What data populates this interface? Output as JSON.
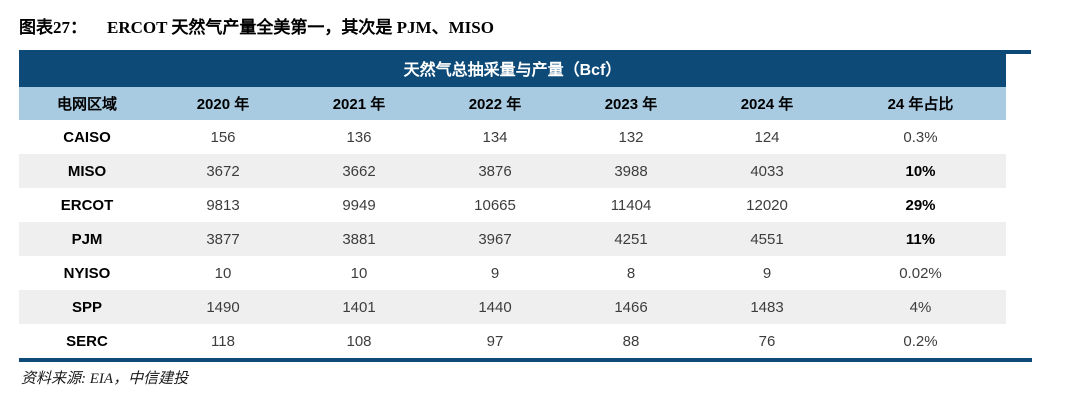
{
  "figure": {
    "number_label": "图表27：",
    "title": "ERCOT 天然气产量全美第一，其次是 PJM、MISO"
  },
  "chart_data": {
    "type": "table",
    "title": "天然气总抽采量与产量（Bcf）",
    "columns": [
      "电网区域",
      "2020 年",
      "2021 年",
      "2022 年",
      "2023 年",
      "2024 年",
      "24 年占比"
    ],
    "rows": [
      {
        "region": "CAISO",
        "values": [
          "156",
          "136",
          "134",
          "132",
          "124"
        ],
        "share": "0.3%",
        "share_bold": false
      },
      {
        "region": "MISO",
        "values": [
          "3672",
          "3662",
          "3876",
          "3988",
          "4033"
        ],
        "share": "10%",
        "share_bold": true
      },
      {
        "region": "ERCOT",
        "values": [
          "9813",
          "9949",
          "10665",
          "11404",
          "12020"
        ],
        "share": "29%",
        "share_bold": true
      },
      {
        "region": "PJM",
        "values": [
          "3877",
          "3881",
          "3967",
          "4251",
          "4551"
        ],
        "share": "11%",
        "share_bold": true
      },
      {
        "region": "NYISO",
        "values": [
          "10",
          "10",
          "9",
          "8",
          "9"
        ],
        "share": "0.02%",
        "share_bold": false
      },
      {
        "region": "SPP",
        "values": [
          "1490",
          "1401",
          "1440",
          "1466",
          "1483"
        ],
        "share": "4%",
        "share_bold": false
      },
      {
        "region": "SERC",
        "values": [
          "118",
          "108",
          "97",
          "88",
          "76"
        ],
        "share": "0.2%",
        "share_bold": false
      }
    ]
  },
  "source_note": "资料来源: EIA，中信建投",
  "colors": {
    "header_navy": "#0d4a78",
    "column_header_blue": "#a9cbe2",
    "alt_row_gray": "#efefef",
    "number_text": "#3d3d3d"
  }
}
